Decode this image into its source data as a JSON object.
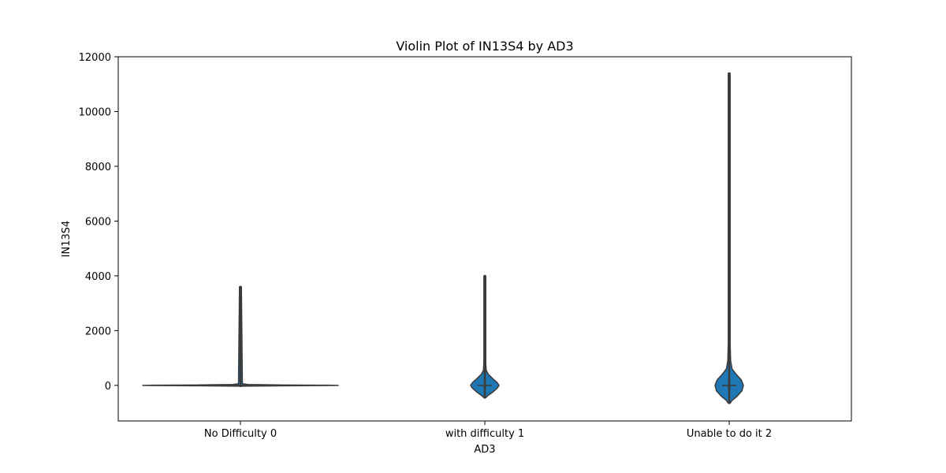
{
  "chart_data": {
    "type": "violin",
    "title": "Violin Plot of IN13S4 by AD3",
    "xlabel": "AD3",
    "ylabel": "IN13S4",
    "categories": [
      "No Difficulty 0",
      "with difficulty 1",
      "Unable to do it 2"
    ],
    "ylim": [
      -1300,
      12000
    ],
    "yticks": [
      0,
      2000,
      4000,
      6000,
      8000,
      10000,
      12000
    ],
    "violin_color": "#1f77b4",
    "line_color": "#3a3a3a",
    "groups": [
      {
        "category": "No Difficulty 0",
        "min": -30,
        "max": 3600,
        "median": 0,
        "q1": -10,
        "q3": 20
      },
      {
        "category": "with difficulty 1",
        "min": -450,
        "max": 4000,
        "median": 0,
        "q1": -100,
        "q3": 100
      },
      {
        "category": "Unable to do it 2",
        "min": -650,
        "max": 11400,
        "median": 0,
        "q1": -150,
        "q3": 200
      }
    ]
  }
}
